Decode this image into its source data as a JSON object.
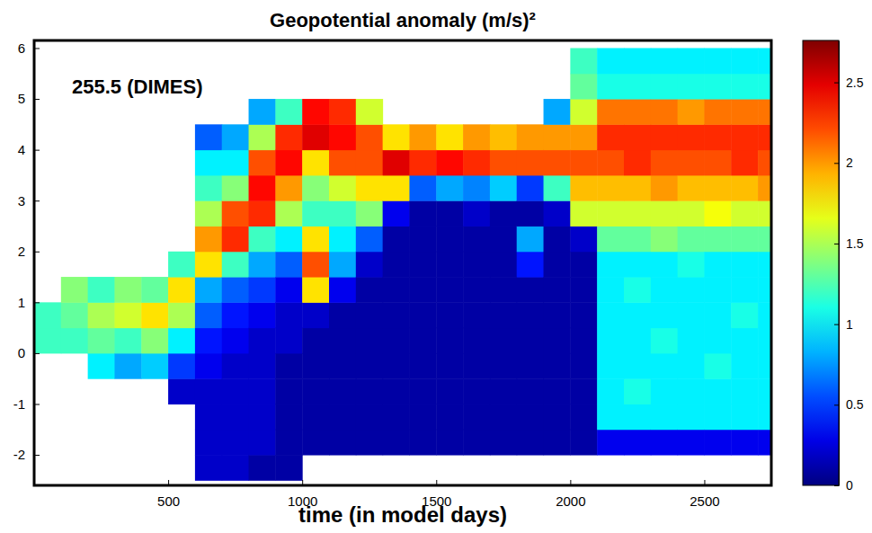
{
  "chart_data": {
    "type": "heatmap",
    "title": "Geopotential anomaly (m/s)²",
    "annotation": "255.5 (DIMES)",
    "xlabel": "time (in model days)",
    "xlim": [
      0,
      2750
    ],
    "xticks": [
      500,
      1000,
      1500,
      2000,
      2500
    ],
    "ylim": [
      -2.6,
      6.15
    ],
    "yticks": [
      -2,
      -1,
      0,
      1,
      2,
      3,
      4,
      5,
      6
    ],
    "x_edges": [
      0,
      100,
      200,
      300,
      400,
      500,
      600,
      700,
      800,
      900,
      1000,
      1100,
      1200,
      1300,
      1400,
      1500,
      1600,
      1700,
      1800,
      1900,
      2000,
      2100,
      2200,
      2300,
      2400,
      2500,
      2600,
      2700,
      2800
    ],
    "y_edges": [
      -2.5,
      -2,
      -1.5,
      -1,
      -0.5,
      0,
      0.5,
      1,
      1.5,
      2,
      2.5,
      3,
      3.5,
      4,
      4.5,
      5,
      5.5,
      6
    ],
    "values": [
      [
        null,
        null,
        null,
        null,
        null,
        1.2,
        1.2,
        null,
        null,
        null,
        null,
        null,
        null,
        null,
        null,
        null,
        null
      ],
      [
        null,
        null,
        null,
        null,
        null,
        1.2,
        1.3,
        1.4,
        null,
        null,
        null,
        null,
        null,
        null,
        null,
        null,
        null
      ],
      [
        null,
        null,
        null,
        null,
        1.0,
        1.3,
        1.5,
        1.2,
        null,
        null,
        null,
        null,
        null,
        null,
        null,
        null,
        null
      ],
      [
        null,
        null,
        null,
        null,
        0.8,
        1.2,
        1.6,
        1.4,
        null,
        null,
        null,
        null,
        null,
        null,
        null,
        null,
        null
      ],
      [
        null,
        null,
        null,
        null,
        0.9,
        1.4,
        1.8,
        1.3,
        null,
        null,
        null,
        null,
        null,
        null,
        null,
        null,
        null
      ],
      [
        null,
        null,
        null,
        0.2,
        0.5,
        1.0,
        1.5,
        1.8,
        1.2,
        null,
        null,
        null,
        null,
        null,
        null,
        null,
        null
      ],
      [
        0.2,
        0.2,
        0.2,
        0.2,
        0.3,
        0.4,
        0.6,
        0.8,
        1.8,
        2.0,
        1.5,
        1.2,
        1.0,
        0.6,
        null,
        null,
        null
      ],
      [
        0.2,
        0.2,
        0.2,
        0.2,
        0.2,
        0.3,
        0.4,
        0.6,
        1.2,
        2.3,
        2.2,
        1.4,
        1.0,
        0.8,
        null,
        null,
        null
      ],
      [
        0.1,
        0.2,
        0.2,
        0.2,
        0.2,
        0.2,
        0.3,
        0.5,
        0.8,
        1.2,
        2.3,
        2.4,
        2.2,
        1.5,
        0.8,
        null,
        null
      ],
      [
        0.1,
        0.1,
        0.1,
        0.1,
        0.1,
        0.2,
        0.2,
        0.3,
        0.6,
        1.0,
        1.5,
        2.0,
        2.4,
        2.3,
        1.2,
        null,
        null
      ],
      [
        null,
        0.1,
        0.1,
        0.1,
        0.1,
        0.1,
        0.2,
        1.8,
        2.2,
        1.8,
        1.2,
        1.4,
        1.8,
        2.5,
        2.4,
        null,
        null
      ],
      [
        null,
        0.1,
        0.1,
        0.1,
        0.1,
        0.1,
        0.1,
        0.3,
        0.8,
        1.0,
        1.2,
        1.6,
        2.2,
        2.4,
        2.3,
        null,
        null
      ],
      [
        null,
        0.1,
        0.1,
        0.1,
        0.1,
        0.1,
        0.1,
        0.1,
        0.2,
        0.6,
        1.4,
        1.8,
        2.2,
        2.2,
        1.6,
        null,
        null
      ],
      [
        null,
        0.1,
        0.1,
        0.1,
        0.1,
        0.1,
        0.1,
        0.1,
        0.1,
        0.1,
        0.3,
        1.8,
        2.5,
        1.8,
        null,
        null,
        null
      ],
      [
        null,
        0.1,
        0.1,
        0.1,
        0.1,
        0.1,
        0.1,
        0.1,
        0.1,
        0.1,
        0.1,
        0.6,
        2.3,
        2.0,
        null,
        null,
        null
      ],
      [
        null,
        0.1,
        0.1,
        0.1,
        0.1,
        0.1,
        0.1,
        0.1,
        0.1,
        0.1,
        0.1,
        0.8,
        2.4,
        1.8,
        null,
        null,
        null
      ],
      [
        null,
        0.1,
        0.1,
        0.1,
        0.1,
        0.1,
        0.1,
        0.1,
        0.1,
        0.1,
        0.2,
        0.7,
        2.3,
        2.0,
        null,
        null,
        null
      ],
      [
        null,
        0.1,
        0.1,
        0.1,
        0.1,
        0.1,
        0.1,
        0.1,
        0.1,
        0.1,
        0.1,
        0.9,
        2.2,
        1.9,
        null,
        null,
        null
      ],
      [
        null,
        0.1,
        0.1,
        0.1,
        0.1,
        0.1,
        0.1,
        0.1,
        0.4,
        0.8,
        0.1,
        0.5,
        2.2,
        2.0,
        null,
        null,
        null
      ],
      [
        null,
        0.1,
        0.1,
        0.1,
        0.1,
        0.1,
        0.1,
        0.1,
        0.1,
        0.1,
        0.2,
        1.2,
        2.2,
        2.0,
        0.8,
        null,
        null
      ],
      [
        null,
        0.1,
        0.1,
        0.1,
        0.1,
        0.1,
        0.1,
        0.1,
        0.1,
        0.2,
        1.6,
        1.9,
        2.2,
        2.0,
        1.6,
        1.3,
        1.2
      ],
      [
        null,
        0.3,
        1.0,
        1.0,
        1.0,
        1.0,
        1.0,
        1.0,
        1.0,
        1.3,
        1.6,
        1.9,
        2.2,
        2.3,
        2.1,
        1.1,
        1.0
      ],
      [
        null,
        0.3,
        1.0,
        1.1,
        1.0,
        1.0,
        1.0,
        1.1,
        1.0,
        1.3,
        1.6,
        1.9,
        2.3,
        2.3,
        2.1,
        1.1,
        1.0
      ],
      [
        null,
        0.3,
        1.0,
        1.0,
        1.0,
        1.1,
        1.0,
        1.0,
        1.0,
        1.4,
        1.6,
        2.0,
        2.2,
        2.3,
        2.1,
        1.1,
        1.0
      ],
      [
        null,
        0.3,
        1.0,
        1.0,
        1.0,
        1.0,
        1.0,
        1.0,
        1.1,
        1.3,
        1.6,
        1.9,
        2.2,
        2.3,
        2.0,
        1.1,
        1.0
      ],
      [
        null,
        0.3,
        1.0,
        1.0,
        1.1,
        1.0,
        1.0,
        1.0,
        1.0,
        1.3,
        1.7,
        1.9,
        2.2,
        2.3,
        2.1,
        1.1,
        1.0
      ],
      [
        null,
        0.3,
        1.0,
        1.0,
        1.0,
        1.0,
        1.1,
        1.0,
        1.0,
        1.3,
        1.6,
        1.9,
        2.3,
        2.3,
        2.1,
        1.1,
        1.0
      ],
      [
        null,
        0.3,
        1.0,
        1.0,
        1.0,
        1.0,
        1.0,
        1.0,
        1.0,
        1.3,
        1.6,
        2.0,
        2.2,
        2.3,
        2.1,
        1.1,
        1.0
      ]
    ],
    "colorbar_range": [
      0,
      2.76
    ],
    "colorbar_ticks": [
      0,
      0.5,
      1,
      1.5,
      2,
      2.5
    ]
  }
}
